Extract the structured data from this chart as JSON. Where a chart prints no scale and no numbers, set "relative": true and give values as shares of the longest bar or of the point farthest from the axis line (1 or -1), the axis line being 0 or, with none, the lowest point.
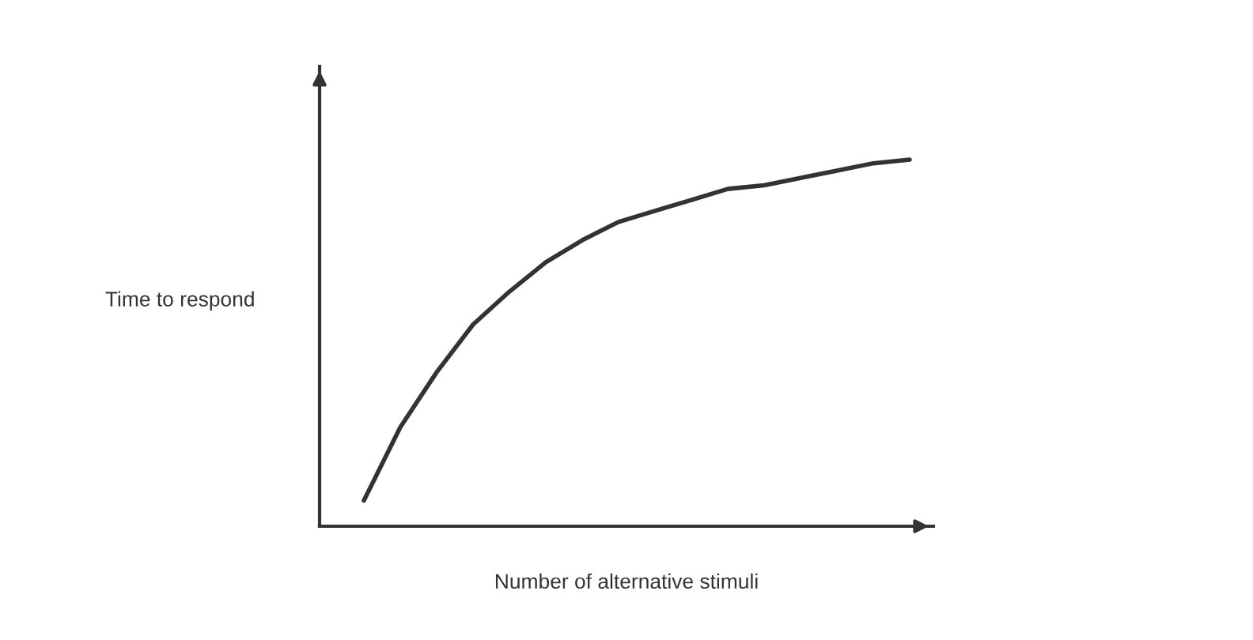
{
  "chart_data": {
    "type": "line",
    "relative": true,
    "xlabel": "Number of alternative stimuli",
    "ylabel": "Time to respond",
    "categories": [
      null,
      null,
      null,
      null,
      null,
      null,
      null,
      null,
      null,
      null,
      null,
      null,
      null,
      null,
      null,
      null
    ],
    "series": [
      {
        "color": "#333333",
        "values": [
          0.07,
          0.27,
          0.42,
          0.55,
          0.64,
          0.72,
          0.78,
          0.83,
          0.86,
          0.89,
          0.92,
          0.93,
          0.95,
          0.97,
          0.99,
          1.0
        ]
      }
    ],
    "grid": false,
    "legend": false,
    "marker": "none",
    "line_style": "solid"
  }
}
